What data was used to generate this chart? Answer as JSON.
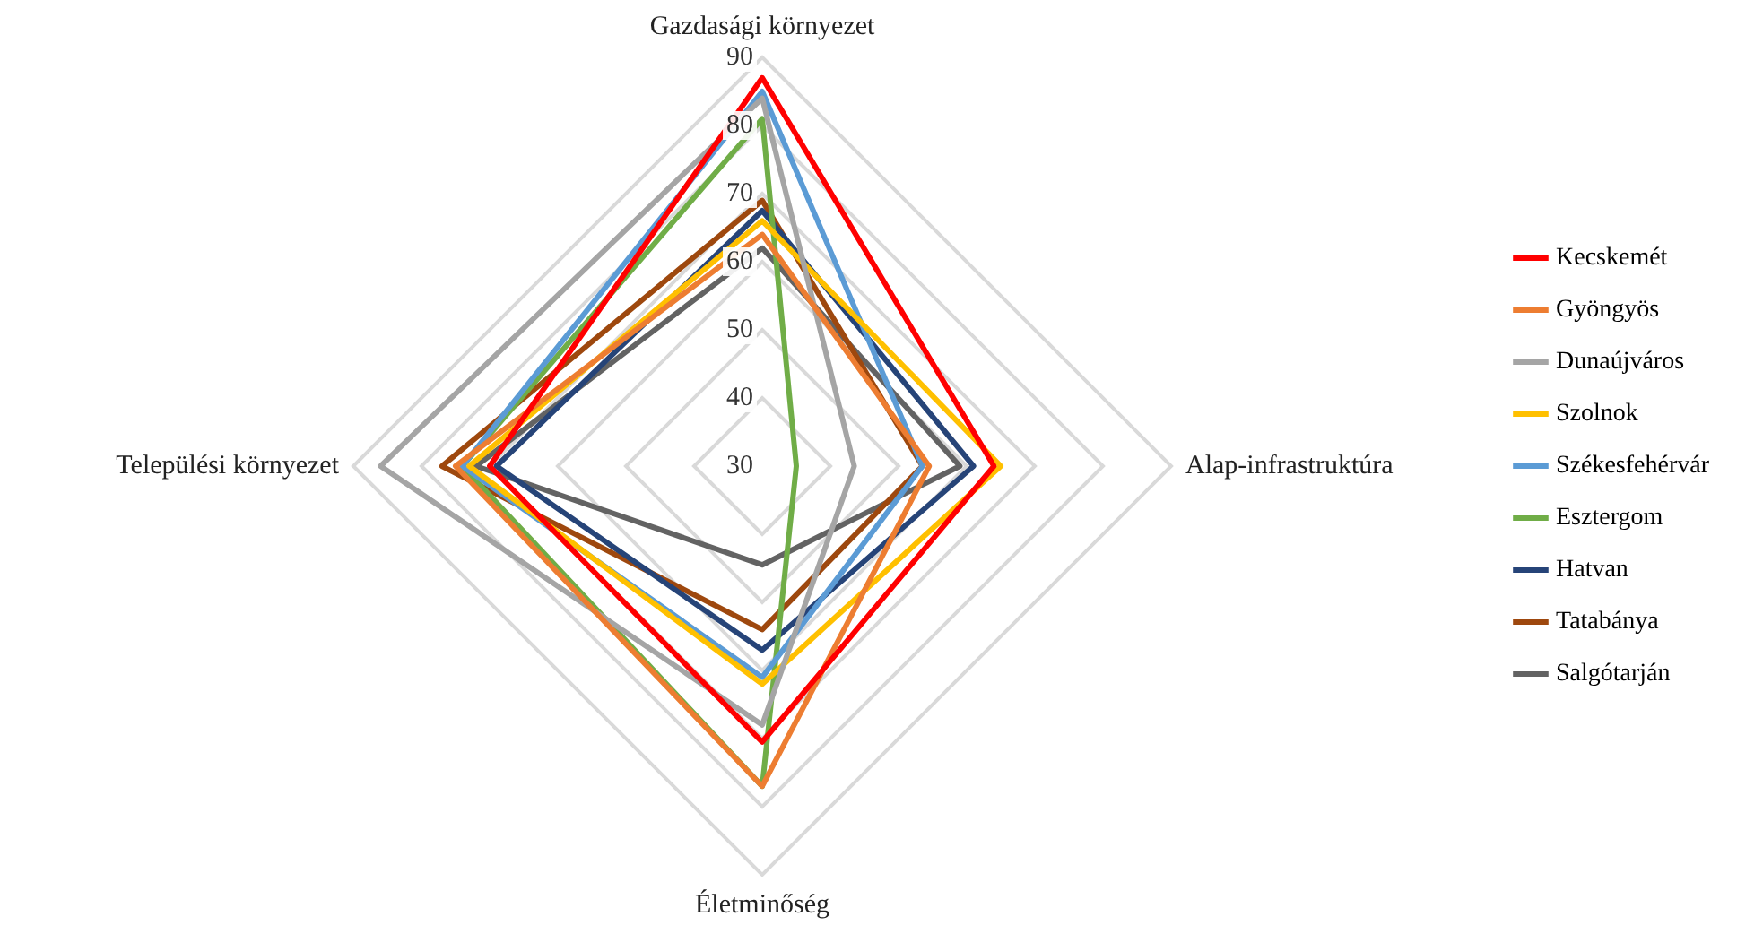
{
  "chart_data": {
    "type": "radar",
    "categories": [
      "Gazdasági környezet",
      "Alap-infrastruktúra",
      "Életminőség",
      "Települési környezet"
    ],
    "ylim": [
      30,
      90
    ],
    "yticks": [
      30,
      40,
      50,
      60,
      70,
      80,
      90
    ],
    "grid": true,
    "legend": "right",
    "marker": "none",
    "series": [
      {
        "name": "Kecskemét",
        "color": "#ff0000",
        "values": [
          87,
          64,
          70.5,
          70
        ]
      },
      {
        "name": "Gyöngyös",
        "color": "#ed7d31",
        "values": [
          64,
          54.5,
          77,
          75
        ]
      },
      {
        "name": "Dunaújváros",
        "color": "#a5a5a5",
        "values": [
          84,
          43.5,
          68,
          86
        ]
      },
      {
        "name": "Szolnok",
        "color": "#ffc000",
        "values": [
          66,
          65,
          62,
          73
        ]
      },
      {
        "name": "Székesfehérvár",
        "color": "#5b9bd5",
        "values": [
          85,
          53.5,
          61,
          74
        ]
      },
      {
        "name": "Esztergom",
        "color": "#70ad47",
        "values": [
          81,
          35,
          77,
          74
        ]
      },
      {
        "name": "Hatvan",
        "color": "#264478",
        "values": [
          67.5,
          61,
          57,
          69
        ]
      },
      {
        "name": "Tatabánya",
        "color": "#9e480e",
        "values": [
          69,
          53.5,
          54,
          77
        ]
      },
      {
        "name": "Salgótarján",
        "color": "#636363",
        "values": [
          62,
          59,
          44.5,
          72
        ]
      }
    ]
  }
}
